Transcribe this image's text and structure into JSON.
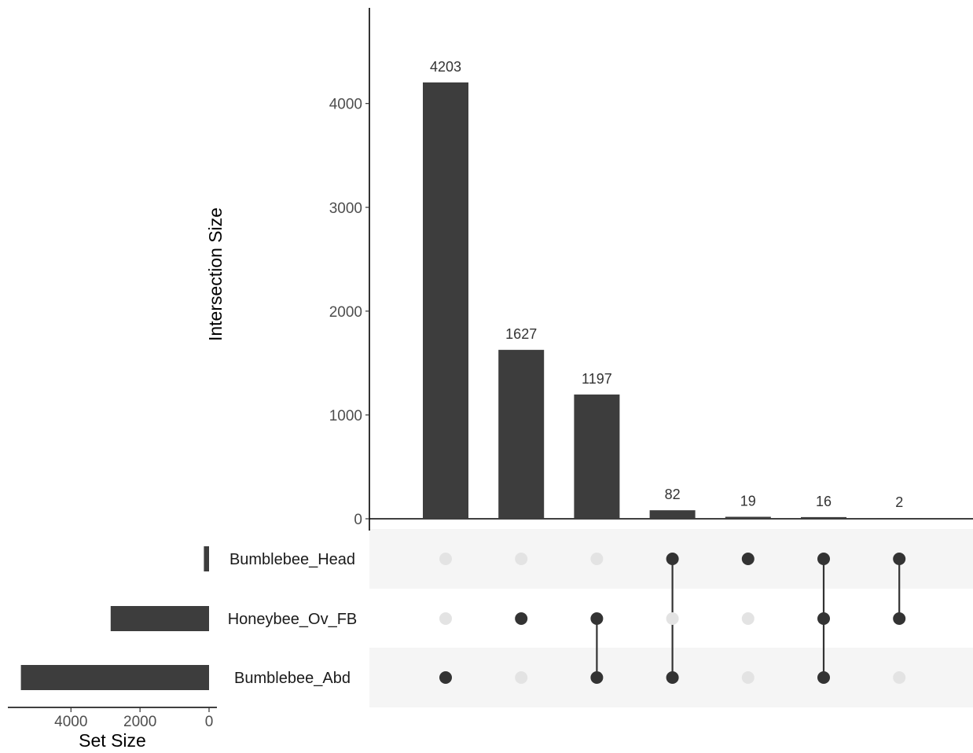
{
  "chart_data": {
    "type": "bar",
    "subtype": "upset",
    "colors": {
      "bar": "#3d3d3d",
      "dot_active": "#333333",
      "dot_inactive": "#e3e3e3",
      "stripe": "#f5f5f5",
      "axis": "#000000"
    },
    "intersection_axis": {
      "label": "Intersection Size",
      "ylim": [
        0,
        4800
      ],
      "ticks": [
        "0",
        "1000",
        "2000",
        "3000",
        "4000"
      ]
    },
    "set_size_axis": {
      "label": "Set Size",
      "xlim": [
        0,
        5600
      ],
      "ticks": [
        "4000",
        "2000",
        "0"
      ]
    },
    "sets": [
      {
        "name": "Bumblebee_Head",
        "size": 150
      },
      {
        "name": "Honeybee_Ov_FB",
        "size": 2850
      },
      {
        "name": "Bumblebee_Abd",
        "size": 5450
      }
    ],
    "intersections": [
      {
        "size": 4203,
        "label": "4203",
        "members": [
          "Bumblebee_Abd"
        ]
      },
      {
        "size": 1627,
        "label": "1627",
        "members": [
          "Honeybee_Ov_FB"
        ]
      },
      {
        "size": 1197,
        "label": "1197",
        "members": [
          "Honeybee_Ov_FB",
          "Bumblebee_Abd"
        ]
      },
      {
        "size": 82,
        "label": "82",
        "members": [
          "Bumblebee_Head",
          "Bumblebee_Abd"
        ]
      },
      {
        "size": 19,
        "label": "19",
        "members": [
          "Bumblebee_Head"
        ]
      },
      {
        "size": 16,
        "label": "16",
        "members": [
          "Bumblebee_Head",
          "Honeybee_Ov_FB",
          "Bumblebee_Abd"
        ]
      },
      {
        "size": 2,
        "label": "2",
        "members": [
          "Bumblebee_Head",
          "Honeybee_Ov_FB"
        ]
      }
    ]
  }
}
